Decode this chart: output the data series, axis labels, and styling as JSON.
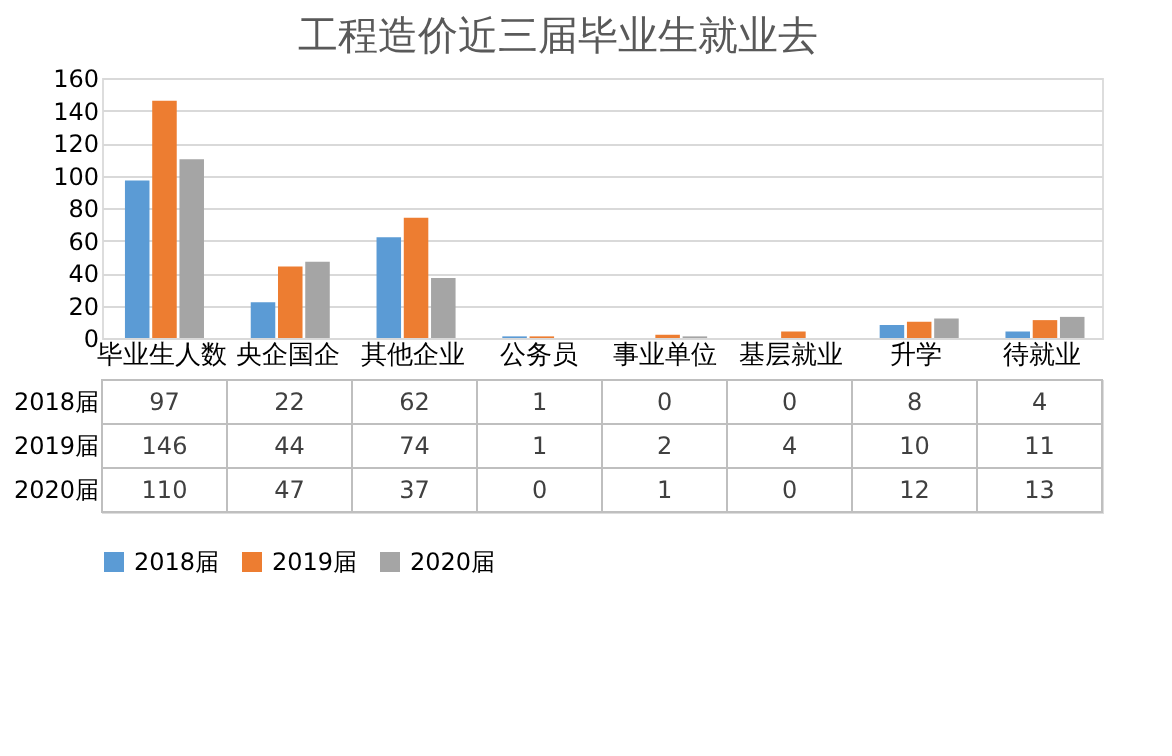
{
  "chart_data": {
    "type": "bar",
    "title": "工程造价近三届毕业生就业去",
    "categories": [
      "毕业生人数",
      "央企国企",
      "其他企业",
      "公务员",
      "事业单位",
      "基层就业",
      "升学",
      "待就业"
    ],
    "series": [
      {
        "name": "2018届",
        "color": "#5b9bd5",
        "values": [
          97,
          22,
          62,
          1,
          0,
          0,
          8,
          4
        ]
      },
      {
        "name": "2019届",
        "color": "#ed7d31",
        "values": [
          146,
          44,
          74,
          1,
          2,
          4,
          10,
          11
        ]
      },
      {
        "name": "2020届",
        "color": "#a5a5a5",
        "values": [
          110,
          47,
          37,
          0,
          1,
          0,
          12,
          13
        ]
      }
    ],
    "ylim": [
      0,
      160
    ],
    "yticks": [
      0,
      20,
      40,
      60,
      80,
      100,
      120,
      140,
      160
    ],
    "grid": "y",
    "legend": "bottom",
    "data_labels": true
  }
}
